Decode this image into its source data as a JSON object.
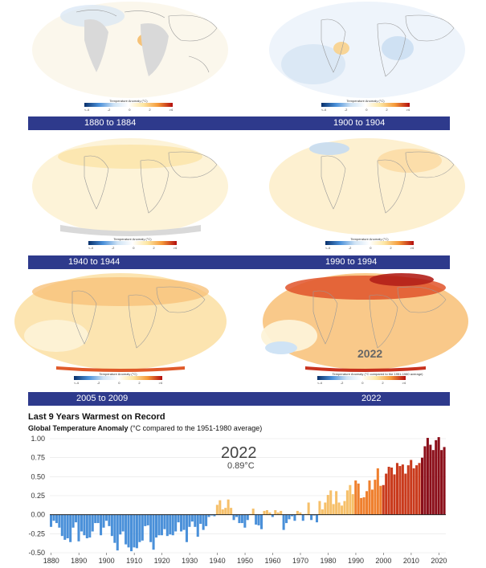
{
  "panels": [
    {
      "label": "1880 to 1884",
      "legend_title": "Temperature Anomaly (°C)"
    },
    {
      "label": "1900 to 1904",
      "legend_title": "Temperature Anomaly (°C)"
    },
    {
      "label": "1940 to 1944",
      "legend_title": "Temperature Anomaly (°C)"
    },
    {
      "label": "1990 to 1994",
      "legend_title": "Temperature Anomaly (°C)"
    },
    {
      "label": "2005 to 2009",
      "legend_title": "Temperature Anomaly (°C)"
    },
    {
      "label": "2022",
      "legend_title": "Temperature Anomaly (°C compared to the 1951-1980 average)",
      "overlay_year": "2022"
    }
  ],
  "legend_ticks": [
    "<-4",
    "-2",
    "0",
    "2",
    ">4"
  ],
  "colors": {
    "label_bar": "#2e3a8c",
    "negative_bar": "#4a90d9",
    "positive_low": "#f6c06a",
    "positive_high": "#8b0f1a"
  },
  "chart_data": {
    "type": "bar",
    "title": "Last 9 Years Warmest on Record",
    "subtitle_bold": "Global Temperature Anomaly",
    "subtitle_rest": " (°C compared to the 1951-1980 average)",
    "annotation_year": "2022",
    "annotation_value": "0.89°C",
    "xlabel": "",
    "ylabel": "",
    "xlim": [
      1880,
      2022
    ],
    "ylim": [
      -0.5,
      1.0
    ],
    "yticks": [
      "1.00",
      "0.75",
      "0.50",
      "0.25",
      "0.00",
      "-0.25",
      "-0.50"
    ],
    "xticks": [
      "1880",
      "1890",
      "1900",
      "1910",
      "1920",
      "1930",
      "1940",
      "1950",
      "1960",
      "1970",
      "1980",
      "1990",
      "2000",
      "2010",
      "2020"
    ],
    "x": [
      1880,
      1881,
      1882,
      1883,
      1884,
      1885,
      1886,
      1887,
      1888,
      1889,
      1890,
      1891,
      1892,
      1893,
      1894,
      1895,
      1896,
      1897,
      1898,
      1899,
      1900,
      1901,
      1902,
      1903,
      1904,
      1905,
      1906,
      1907,
      1908,
      1909,
      1910,
      1911,
      1912,
      1913,
      1914,
      1915,
      1916,
      1917,
      1918,
      1919,
      1920,
      1921,
      1922,
      1923,
      1924,
      1925,
      1926,
      1927,
      1928,
      1929,
      1930,
      1931,
      1932,
      1933,
      1934,
      1935,
      1936,
      1937,
      1938,
      1939,
      1940,
      1941,
      1942,
      1943,
      1944,
      1945,
      1946,
      1947,
      1948,
      1949,
      1950,
      1951,
      1952,
      1953,
      1954,
      1955,
      1956,
      1957,
      1958,
      1959,
      1960,
      1961,
      1962,
      1963,
      1964,
      1965,
      1966,
      1967,
      1968,
      1969,
      1970,
      1971,
      1972,
      1973,
      1974,
      1975,
      1976,
      1977,
      1978,
      1979,
      1980,
      1981,
      1982,
      1983,
      1984,
      1985,
      1986,
      1987,
      1988,
      1989,
      1990,
      1991,
      1992,
      1993,
      1994,
      1995,
      1996,
      1997,
      1998,
      1999,
      2000,
      2001,
      2002,
      2003,
      2004,
      2005,
      2006,
      2007,
      2008,
      2009,
      2010,
      2011,
      2012,
      2013,
      2014,
      2015,
      2016,
      2017,
      2018,
      2019,
      2020,
      2021,
      2022
    ],
    "values": [
      -0.16,
      -0.08,
      -0.11,
      -0.17,
      -0.28,
      -0.33,
      -0.31,
      -0.36,
      -0.17,
      -0.1,
      -0.35,
      -0.22,
      -0.27,
      -0.31,
      -0.3,
      -0.22,
      -0.11,
      -0.11,
      -0.27,
      -0.17,
      -0.08,
      -0.15,
      -0.28,
      -0.37,
      -0.47,
      -0.26,
      -0.22,
      -0.39,
      -0.43,
      -0.48,
      -0.43,
      -0.44,
      -0.36,
      -0.34,
      -0.15,
      -0.14,
      -0.36,
      -0.46,
      -0.3,
      -0.27,
      -0.27,
      -0.19,
      -0.28,
      -0.26,
      -0.27,
      -0.22,
      -0.1,
      -0.22,
      -0.2,
      -0.36,
      -0.16,
      -0.09,
      -0.16,
      -0.29,
      -0.12,
      -0.2,
      -0.15,
      -0.03,
      -0.01,
      -0.02,
      0.13,
      0.19,
      0.07,
      0.09,
      0.2,
      0.09,
      -0.07,
      -0.03,
      -0.11,
      -0.11,
      -0.17,
      -0.07,
      0.01,
      0.08,
      -0.13,
      -0.14,
      -0.19,
      0.05,
      0.06,
      0.03,
      -0.03,
      0.06,
      0.03,
      0.05,
      -0.2,
      -0.11,
      -0.06,
      -0.02,
      -0.08,
      0.05,
      0.03,
      -0.08,
      0.01,
      0.16,
      -0.07,
      -0.01,
      -0.1,
      0.18,
      0.07,
      0.16,
      0.26,
      0.32,
      0.14,
      0.31,
      0.16,
      0.12,
      0.18,
      0.32,
      0.39,
      0.27,
      0.45,
      0.41,
      0.22,
      0.23,
      0.31,
      0.45,
      0.33,
      0.46,
      0.61,
      0.38,
      0.39,
      0.54,
      0.63,
      0.62,
      0.53,
      0.68,
      0.64,
      0.66,
      0.54,
      0.65,
      0.72,
      0.61,
      0.65,
      0.68,
      0.75,
      0.9,
      1.01,
      0.92,
      0.85,
      0.98,
      1.02,
      0.85,
      0.89
    ]
  }
}
